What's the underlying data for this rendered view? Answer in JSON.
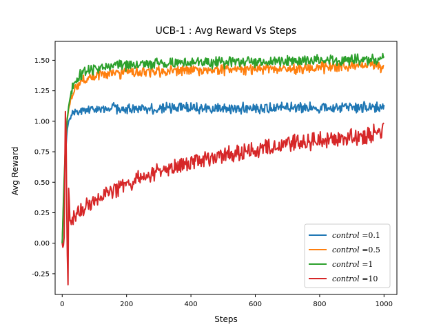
{
  "chart_data": {
    "type": "line",
    "title": "UCB-1 : Avg Reward Vs Steps",
    "xlabel": "Steps",
    "ylabel": "Avg Reward",
    "xlim": [
      -22,
      1040
    ],
    "ylim": [
      -0.42,
      1.655
    ],
    "xticks": [
      0,
      200,
      400,
      600,
      800,
      1000
    ],
    "xtick_labels": [
      "0",
      "200",
      "400",
      "600",
      "800",
      "1000"
    ],
    "yticks": [
      -0.25,
      0.0,
      0.25,
      0.5,
      0.75,
      1.0,
      1.25,
      1.5
    ],
    "ytick_labels": [
      "-0.25",
      "0.00",
      "0.25",
      "0.50",
      "0.75",
      "1.00",
      "1.25",
      "1.50"
    ],
    "grid": false,
    "legend_position": "lower-right",
    "series": [
      {
        "name": "control =0.1",
        "legend_var": "control",
        "legend_value": "=0.1",
        "color": "#1f77b4",
        "x": [
          0,
          5,
          10,
          15,
          20,
          25,
          30,
          40,
          50,
          60,
          75,
          100,
          150,
          200,
          300,
          400,
          500,
          600,
          700,
          800,
          900,
          1000
        ],
        "y": [
          0.0,
          0.35,
          0.72,
          0.92,
          1.0,
          1.03,
          1.05,
          1.07,
          1.08,
          1.09,
          1.09,
          1.1,
          1.1,
          1.1,
          1.11,
          1.11,
          1.1,
          1.11,
          1.11,
          1.11,
          1.11,
          1.12
        ]
      },
      {
        "name": "control =0.5",
        "legend_var": "control",
        "legend_value": "=0.5",
        "color": "#ff7f0e",
        "x": [
          0,
          5,
          10,
          15,
          20,
          25,
          30,
          40,
          50,
          60,
          75,
          100,
          150,
          200,
          300,
          400,
          500,
          600,
          700,
          800,
          900,
          1000
        ],
        "y": [
          0.0,
          0.4,
          0.8,
          1.0,
          1.1,
          1.15,
          1.2,
          1.26,
          1.3,
          1.33,
          1.35,
          1.37,
          1.39,
          1.4,
          1.41,
          1.42,
          1.42,
          1.43,
          1.43,
          1.44,
          1.45,
          1.45
        ]
      },
      {
        "name": "control =1",
        "legend_var": "control",
        "legend_value": "=1",
        "color": "#2ca02c",
        "x": [
          0,
          5,
          10,
          15,
          20,
          25,
          30,
          40,
          50,
          60,
          75,
          100,
          150,
          200,
          300,
          400,
          500,
          600,
          700,
          800,
          900,
          1000
        ],
        "y": [
          0.0,
          0.45,
          0.8,
          1.0,
          1.12,
          1.2,
          1.25,
          1.32,
          1.36,
          1.39,
          1.41,
          1.43,
          1.45,
          1.46,
          1.47,
          1.48,
          1.48,
          1.49,
          1.49,
          1.5,
          1.5,
          1.51
        ]
      },
      {
        "name": "control =10",
        "legend_var": "control",
        "legend_value": "=10",
        "color": "#d62728",
        "x": [
          0,
          3,
          6,
          8,
          10,
          12,
          14,
          16,
          18,
          20,
          22,
          25,
          28,
          32,
          40,
          50,
          60,
          80,
          100,
          150,
          200,
          250,
          300,
          350,
          400,
          450,
          500,
          550,
          600,
          650,
          700,
          750,
          800,
          850,
          900,
          950,
          1000
        ],
        "y": [
          0.0,
          -0.05,
          0.05,
          0.6,
          1.08,
          0.9,
          0.3,
          -0.1,
          -0.34,
          0.45,
          0.35,
          0.1,
          0.15,
          0.2,
          0.22,
          0.25,
          0.28,
          0.32,
          0.36,
          0.42,
          0.48,
          0.54,
          0.59,
          0.63,
          0.66,
          0.69,
          0.72,
          0.75,
          0.77,
          0.79,
          0.81,
          0.83,
          0.84,
          0.86,
          0.87,
          0.89,
          0.91
        ]
      }
    ]
  }
}
